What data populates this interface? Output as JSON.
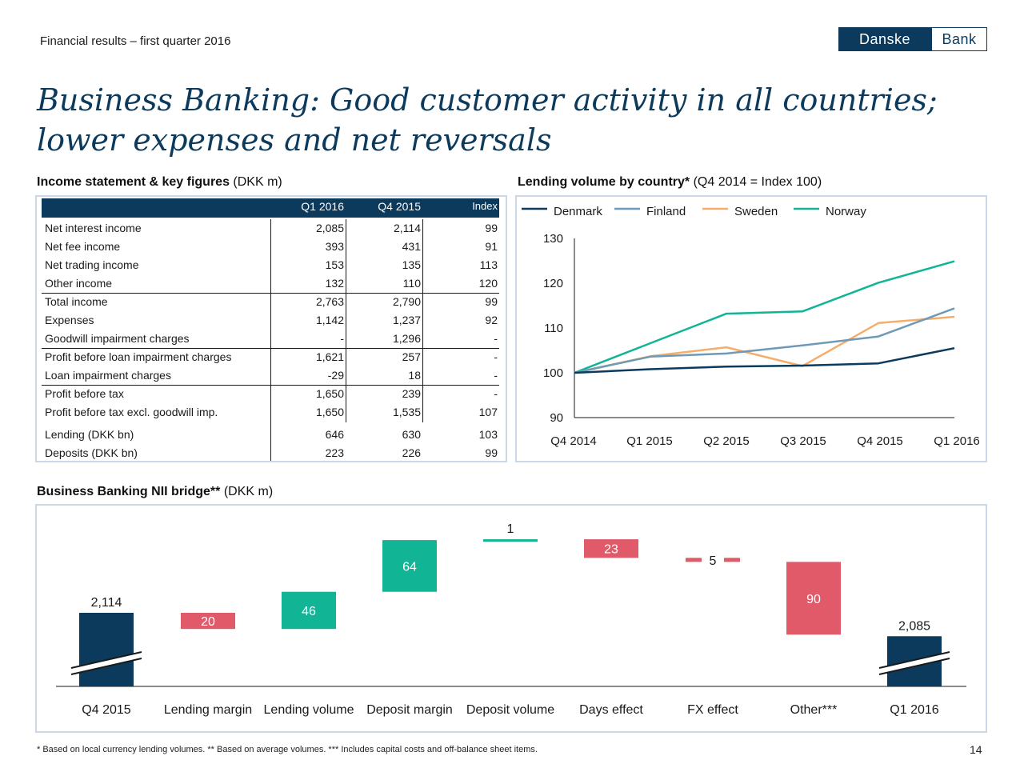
{
  "header": {
    "subtitle": "Financial results – first quarter 2016"
  },
  "logo": {
    "left": "Danske",
    "right": "Bank"
  },
  "title": {
    "line1": "Business Banking: Good customer activity in all countries;",
    "line2": "lower expenses and net reversals"
  },
  "income": {
    "heading_bold": "Income statement & key figures",
    "heading_rest": " (DKK m)",
    "columns": [
      "Q1 2016",
      "Q4 2015",
      "Index"
    ],
    "rows": [
      {
        "label": "Net interest income",
        "q1": "2,085",
        "q4": "2,114",
        "idx": "99"
      },
      {
        "label": "Net fee income",
        "q1": "393",
        "q4": "431",
        "idx": "91"
      },
      {
        "label": "Net trading income",
        "q1": "153",
        "q4": "135",
        "idx": "113"
      },
      {
        "label": "Other income",
        "q1": "132",
        "q4": "110",
        "idx": "120"
      },
      {
        "label": "Total income",
        "q1": "2,763",
        "q4": "2,790",
        "idx": "99"
      },
      {
        "label": "Expenses",
        "q1": "1,142",
        "q4": "1,237",
        "idx": "92"
      },
      {
        "label": "Goodwill impairment charges",
        "q1": "-",
        "q4": "1,296",
        "idx": "-"
      },
      {
        "label": "Profit before loan impairment charges",
        "q1": "1,621",
        "q4": "257",
        "idx": "-"
      },
      {
        "label": "Loan impairment charges",
        "q1": "-29",
        "q4": "18",
        "idx": "-"
      },
      {
        "label": "Profit before tax",
        "q1": "1,650",
        "q4": "239",
        "idx": "-"
      },
      {
        "label": "Profit before tax excl. goodwill imp.",
        "q1": "1,650",
        "q4": "1,535",
        "idx": "107"
      },
      {
        "label": "Lending (DKK bn)",
        "q1": "646",
        "q4": "630",
        "idx": "103"
      },
      {
        "label": "Deposits (DKK bn)",
        "q1": "223",
        "q4": "226",
        "idx": "99"
      }
    ]
  },
  "lending": {
    "heading_bold": "Lending volume by country*",
    "heading_rest": " (Q4 2014 = Index 100)"
  },
  "bridge": {
    "heading_bold": "Business Banking NII bridge**",
    "heading_rest": " (DKK m)"
  },
  "chart_data": [
    {
      "type": "line",
      "title": "Lending volume by country* (Q4 2014 = Index 100)",
      "x": [
        "Q4 2014",
        "Q1 2015",
        "Q2 2015",
        "Q3 2015",
        "Q4 2015",
        "Q1 2016"
      ],
      "ylim": [
        90,
        130
      ],
      "yticks": [
        90,
        100,
        110,
        120,
        130
      ],
      "legend": "top",
      "series": [
        {
          "name": "Denmark",
          "color": "#0b3a5d",
          "values": [
            100,
            100.8,
            101.4,
            101.6,
            102.1,
            105.5
          ]
        },
        {
          "name": "Finland",
          "color": "#6f9ab7",
          "values": [
            100,
            103.6,
            104.3,
            106.1,
            108.1,
            114.4
          ]
        },
        {
          "name": "Sweden",
          "color": "#f4ad6b",
          "values": [
            100,
            103.7,
            105.7,
            101.5,
            111.1,
            112.5
          ]
        },
        {
          "name": "Norway",
          "color": "#12b496",
          "values": [
            100,
            106.6,
            113.2,
            113.7,
            120.1,
            124.9
          ]
        }
      ]
    },
    {
      "type": "bar",
      "subtype": "waterfall",
      "title": "Business Banking NII bridge** (DKK m)",
      "categories": [
        "Q4 2015",
        "Lending margin",
        "Lending volume",
        "Deposit margin",
        "Deposit volume",
        "Days effect",
        "FX effect",
        "Other***",
        "Q1 2016"
      ],
      "values": [
        2114,
        -20,
        46,
        64,
        1,
        -23,
        -5,
        -90,
        2085
      ],
      "labels": [
        "2,114",
        "20",
        "46",
        "64",
        "1",
        "23",
        "5",
        "90",
        "2,085"
      ],
      "kinds": [
        "total",
        "delta",
        "delta",
        "delta",
        "delta",
        "delta",
        "delta",
        "delta",
        "total"
      ],
      "colors": {
        "total": "#0b3a5d",
        "increase": "#12b496",
        "decrease": "#e05a6a"
      }
    }
  ],
  "footnote": "* Based on local currency lending volumes. ** Based on average volumes. *** Includes capital costs and off-balance sheet items.",
  "page_number": "14"
}
